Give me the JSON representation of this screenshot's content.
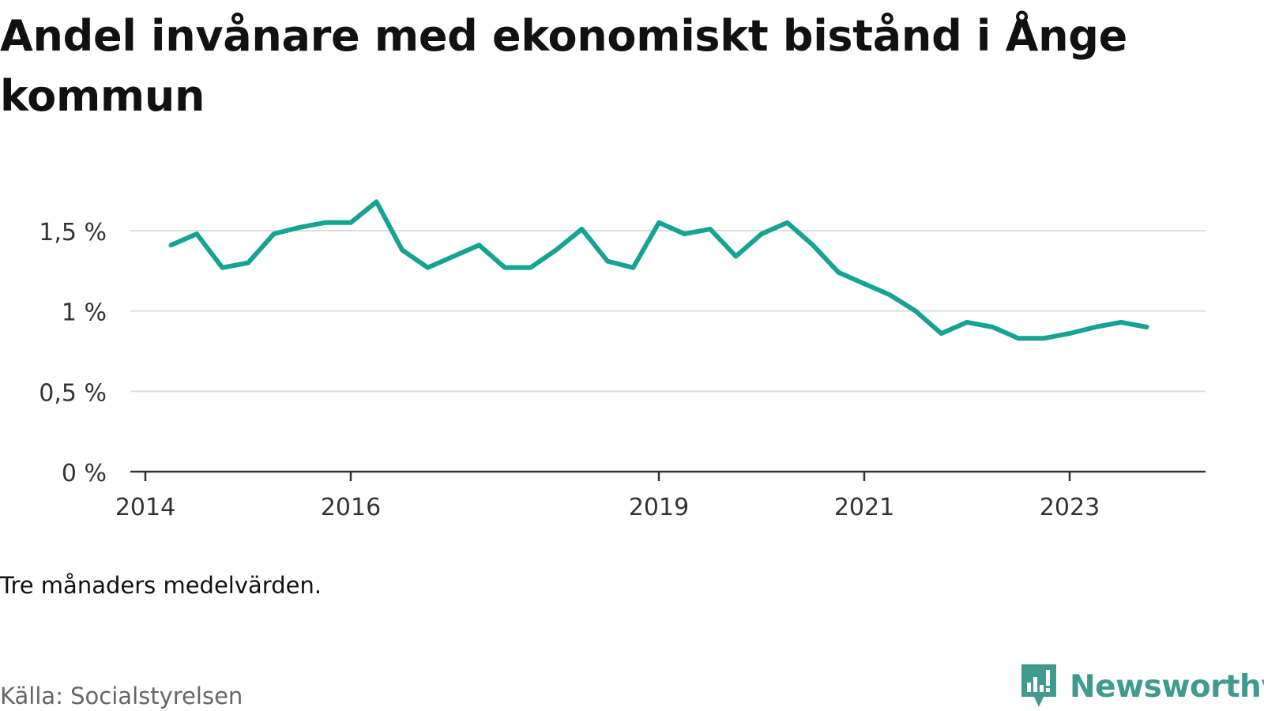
{
  "header": {
    "title": "Andel invånare med ekonomiskt bistånd i Ånge kommun"
  },
  "footer": {
    "note": "Tre månaders medelvärden.",
    "source": "Källa: Socialstyrelsen",
    "brand": "Newsworthy",
    "brand_icon": "bar-chart-speech-bubble-icon",
    "brand_color": "#3f9b8f"
  },
  "chart_data": {
    "type": "line",
    "title": "Andel invånare med ekonomiskt bistånd i Ånge kommun",
    "xlabel": "",
    "ylabel": "",
    "ylim": [
      0,
      1.5
    ],
    "yticks": [
      {
        "value": 0,
        "label": "0 %"
      },
      {
        "value": 0.5,
        "label": "0,5 %"
      },
      {
        "value": 1,
        "label": "1 %"
      },
      {
        "value": 1.5,
        "label": "1,5 %"
      }
    ],
    "xticks": [
      "2014",
      "2016",
      "2019",
      "2021",
      "2023"
    ],
    "grid": true,
    "line_color": "#16a394",
    "series": [
      {
        "name": "",
        "x": [
          "2014-04",
          "2014-07",
          "2014-10",
          "2015-01",
          "2015-04",
          "2015-07",
          "2015-10",
          "2016-01",
          "2016-04",
          "2016-07",
          "2016-10",
          "2017-01",
          "2017-04",
          "2017-07",
          "2017-10",
          "2018-01",
          "2018-04",
          "2018-07",
          "2018-10",
          "2019-01",
          "2019-04",
          "2019-07",
          "2019-10",
          "2020-01",
          "2020-04",
          "2020-07",
          "2020-10",
          "2021-01",
          "2021-04",
          "2021-07",
          "2021-10",
          "2022-01",
          "2022-04",
          "2022-07",
          "2022-10",
          "2023-01",
          "2023-04",
          "2023-07",
          "2023-10"
        ],
        "values": [
          1.41,
          1.48,
          1.27,
          1.3,
          1.48,
          1.52,
          1.55,
          1.55,
          1.68,
          1.38,
          1.27,
          1.34,
          1.41,
          1.27,
          1.27,
          1.38,
          1.51,
          1.31,
          1.27,
          1.55,
          1.48,
          1.51,
          1.34,
          1.48,
          1.55,
          1.41,
          1.24,
          1.17,
          1.1,
          1.0,
          0.86,
          0.93,
          0.9,
          0.83,
          0.83,
          0.86,
          0.9,
          0.93,
          0.9
        ]
      }
    ]
  }
}
